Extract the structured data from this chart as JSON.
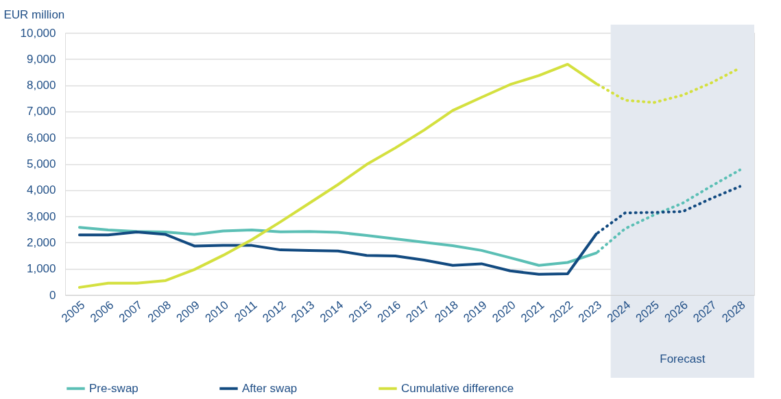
{
  "chart_data": {
    "type": "line",
    "ylabel": "EUR million",
    "x": [
      2005,
      2006,
      2007,
      2008,
      2009,
      2010,
      2011,
      2012,
      2013,
      2014,
      2015,
      2016,
      2017,
      2018,
      2019,
      2020,
      2021,
      2022,
      2023
    ],
    "series": [
      {
        "name": "Pre-swap",
        "color": "#5bbfb5",
        "line_style": "solid",
        "values": [
          2580,
          2480,
          2420,
          2400,
          2310,
          2440,
          2480,
          2410,
          2420,
          2390,
          2270,
          2140,
          2010,
          1880,
          1700,
          1420,
          1130,
          1240,
          1600
        ]
      },
      {
        "name": "After swap",
        "color": "#124a80",
        "line_style": "solid",
        "values": [
          2290,
          2290,
          2400,
          2310,
          1870,
          1890,
          1890,
          1720,
          1700,
          1680,
          1510,
          1490,
          1330,
          1130,
          1190,
          920,
          790,
          810,
          2330
        ]
      },
      {
        "name": "Cumulative difference",
        "color": "#d4e03f",
        "line_style": "solid",
        "values": [
          290,
          450,
          450,
          550,
          970,
          1510,
          2110,
          2790,
          3500,
          4210,
          4980,
          5610,
          6290,
          7040,
          7540,
          8030,
          8370,
          8800,
          8060
        ]
      },
      {
        "color": "#5bbfb5",
        "line_style": "dotted",
        "x": [
          2023,
          2024,
          2025,
          2026,
          2027,
          2028
        ],
        "values": [
          1600,
          2530,
          3050,
          3500,
          4150,
          4770
        ]
      },
      {
        "color": "#124a80",
        "line_style": "dotted",
        "x": [
          2023,
          2024,
          2025,
          2026,
          2027,
          2028
        ],
        "values": [
          2330,
          3130,
          3150,
          3180,
          3680,
          4140
        ]
      },
      {
        "color": "#d4e03f",
        "line_style": "dotted",
        "x": [
          2023,
          2024,
          2025,
          2026,
          2027,
          2028
        ],
        "values": [
          8060,
          7430,
          7340,
          7620,
          8090,
          8660
        ]
      }
    ],
    "xlim": [
      2004.5,
      2028.5
    ],
    "xticks": [
      2005,
      2006,
      2007,
      2008,
      2009,
      2010,
      2011,
      2012,
      2013,
      2014,
      2015,
      2016,
      2017,
      2018,
      2019,
      2020,
      2021,
      2022,
      2023,
      2024,
      2025,
      2026,
      2027,
      2028
    ],
    "ylim": [
      0,
      10000
    ],
    "yticks": [
      0,
      {
        "value": 1000,
        "label": "1,000"
      },
      {
        "value": 2000,
        "label": "2,000"
      },
      {
        "value": 3000,
        "label": "3,000"
      },
      {
        "value": 4000,
        "label": "4,000"
      },
      {
        "value": 5000,
        "label": "5,000"
      },
      {
        "value": 6000,
        "label": "6,000"
      },
      {
        "value": 7000,
        "label": "7,000"
      },
      {
        "value": 8000,
        "label": "8,000"
      },
      {
        "value": 9000,
        "label": "9,000"
      },
      {
        "value": 10000,
        "label": "10,000"
      }
    ],
    "bands": [
      {
        "axis": "x",
        "from": 2023.5,
        "to": 2028.5,
        "label": "Forecast",
        "color": "#e4e9f0"
      }
    ],
    "grid": "y",
    "legend": "bottom",
    "marker": "none"
  }
}
